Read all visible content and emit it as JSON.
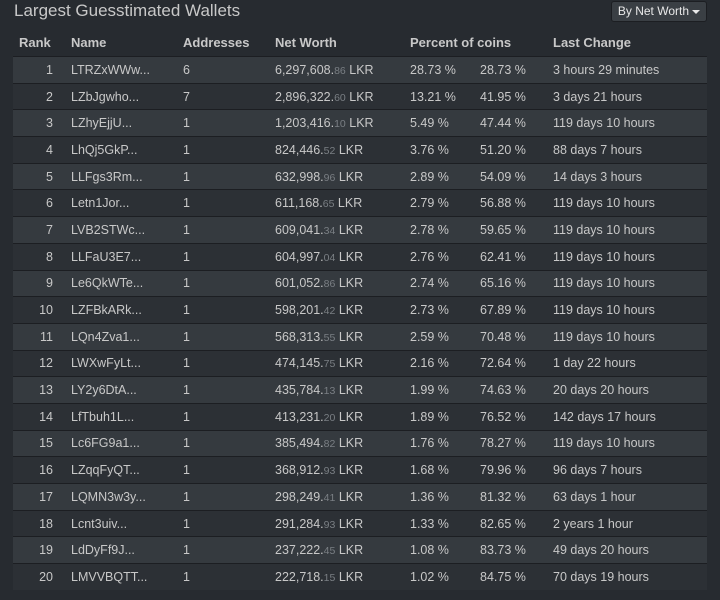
{
  "title": "Largest Guesstimated Wallets",
  "sort_button": "By Net Worth",
  "columns": {
    "rank": "Rank",
    "name": "Name",
    "addresses": "Addresses",
    "net_worth": "Net Worth",
    "percent": "Percent of coins",
    "last_change": "Last Change"
  },
  "currency": "LKR",
  "rows": [
    {
      "rank": "1",
      "name": "LTRZxWWw...",
      "addresses": "6",
      "worth_main": "6,297,608.",
      "worth_dec": "86",
      "pct": "28.73 %",
      "cum": "28.73 %",
      "last": "3 hours 29 minutes"
    },
    {
      "rank": "2",
      "name": "LZbJgwho...",
      "addresses": "7",
      "worth_main": "2,896,322.",
      "worth_dec": "60",
      "pct": "13.21 %",
      "cum": "41.95 %",
      "last": "3 days 21 hours"
    },
    {
      "rank": "3",
      "name": "LZhyEjjU...",
      "addresses": "1",
      "worth_main": "1,203,416.",
      "worth_dec": "10",
      "pct": "5.49 %",
      "cum": "47.44 %",
      "last": "119 days 10 hours"
    },
    {
      "rank": "4",
      "name": "LhQj5GkP...",
      "addresses": "1",
      "worth_main": "824,446.",
      "worth_dec": "52",
      "pct": "3.76 %",
      "cum": "51.20 %",
      "last": "88 days 7 hours"
    },
    {
      "rank": "5",
      "name": "LLFgs3Rm...",
      "addresses": "1",
      "worth_main": "632,998.",
      "worth_dec": "96",
      "pct": "2.89 %",
      "cum": "54.09 %",
      "last": "14 days 3 hours"
    },
    {
      "rank": "6",
      "name": "Letn1Jor...",
      "addresses": "1",
      "worth_main": "611,168.",
      "worth_dec": "65",
      "pct": "2.79 %",
      "cum": "56.88 %",
      "last": "119 days 10 hours"
    },
    {
      "rank": "7",
      "name": "LVB2STWc...",
      "addresses": "1",
      "worth_main": "609,041.",
      "worth_dec": "34",
      "pct": "2.78 %",
      "cum": "59.65 %",
      "last": "119 days 10 hours"
    },
    {
      "rank": "8",
      "name": "LLFaU3E7...",
      "addresses": "1",
      "worth_main": "604,997.",
      "worth_dec": "04",
      "pct": "2.76 %",
      "cum": "62.41 %",
      "last": "119 days 10 hours"
    },
    {
      "rank": "9",
      "name": "Le6QkWTe...",
      "addresses": "1",
      "worth_main": "601,052.",
      "worth_dec": "86",
      "pct": "2.74 %",
      "cum": "65.16 %",
      "last": "119 days 10 hours"
    },
    {
      "rank": "10",
      "name": "LZFBkARk...",
      "addresses": "1",
      "worth_main": "598,201.",
      "worth_dec": "42",
      "pct": "2.73 %",
      "cum": "67.89 %",
      "last": "119 days 10 hours"
    },
    {
      "rank": "11",
      "name": "LQn4Zva1...",
      "addresses": "1",
      "worth_main": "568,313.",
      "worth_dec": "55",
      "pct": "2.59 %",
      "cum": "70.48 %",
      "last": "119 days 10 hours"
    },
    {
      "rank": "12",
      "name": "LWXwFyLt...",
      "addresses": "1",
      "worth_main": "474,145.",
      "worth_dec": "75",
      "pct": "2.16 %",
      "cum": "72.64 %",
      "last": "1 day 22 hours"
    },
    {
      "rank": "13",
      "name": "LY2y6DtA...",
      "addresses": "1",
      "worth_main": "435,784.",
      "worth_dec": "13",
      "pct": "1.99 %",
      "cum": "74.63 %",
      "last": "20 days 20 hours"
    },
    {
      "rank": "14",
      "name": "LfTbuh1L...",
      "addresses": "1",
      "worth_main": "413,231.",
      "worth_dec": "20",
      "pct": "1.89 %",
      "cum": "76.52 %",
      "last": "142 days 17 hours"
    },
    {
      "rank": "15",
      "name": "Lc6FG9a1...",
      "addresses": "1",
      "worth_main": "385,494.",
      "worth_dec": "82",
      "pct": "1.76 %",
      "cum": "78.27 %",
      "last": "119 days 10 hours"
    },
    {
      "rank": "16",
      "name": "LZqqFyQT...",
      "addresses": "1",
      "worth_main": "368,912.",
      "worth_dec": "93",
      "pct": "1.68 %",
      "cum": "79.96 %",
      "last": "96 days 7 hours"
    },
    {
      "rank": "17",
      "name": "LQMN3w3y...",
      "addresses": "1",
      "worth_main": "298,249.",
      "worth_dec": "41",
      "pct": "1.36 %",
      "cum": "81.32 %",
      "last": "63 days 1 hour"
    },
    {
      "rank": "18",
      "name": "Lcnt3uiv...",
      "addresses": "1",
      "worth_main": "291,284.",
      "worth_dec": "93",
      "pct": "1.33 %",
      "cum": "82.65 %",
      "last": "2 years 1 hour"
    },
    {
      "rank": "19",
      "name": "LdDyFf9J...",
      "addresses": "1",
      "worth_main": "237,222.",
      "worth_dec": "45",
      "pct": "1.08 %",
      "cum": "83.73 %",
      "last": "49 days 20 hours"
    },
    {
      "rank": "20",
      "name": "LMVVBQTT...",
      "addresses": "1",
      "worth_main": "222,718.",
      "worth_dec": "15",
      "pct": "1.02 %",
      "cum": "84.75 %",
      "last": "70 days 19 hours"
    }
  ]
}
